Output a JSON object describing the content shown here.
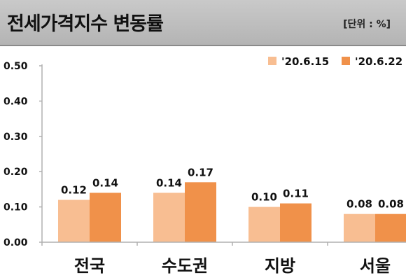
{
  "header": {
    "title": "전세가격지수 변동률",
    "unit": "[단위 : %]"
  },
  "colors": {
    "series1": "#f8be92",
    "series2": "#f0914a",
    "header_bg": "#bdbdbd",
    "axis": "#b0b0b0"
  },
  "chart_data": {
    "type": "bar",
    "title": "전세가격지수 변동률",
    "unit": "[단위 : %]",
    "categories": [
      "전국",
      "수도권",
      "지방",
      "서울"
    ],
    "series": [
      {
        "name": "'20.6.15",
        "values": [
          0.12,
          0.14,
          0.1,
          0.08
        ]
      },
      {
        "name": "'20.6.22",
        "values": [
          0.14,
          0.17,
          0.11,
          0.08
        ]
      }
    ],
    "ylim": [
      0,
      0.5
    ],
    "yticks": [
      "0.00",
      "0.10",
      "0.20",
      "0.30",
      "0.40",
      "0.50"
    ],
    "legend": "top-right",
    "grid": false,
    "data_labels": true
  }
}
